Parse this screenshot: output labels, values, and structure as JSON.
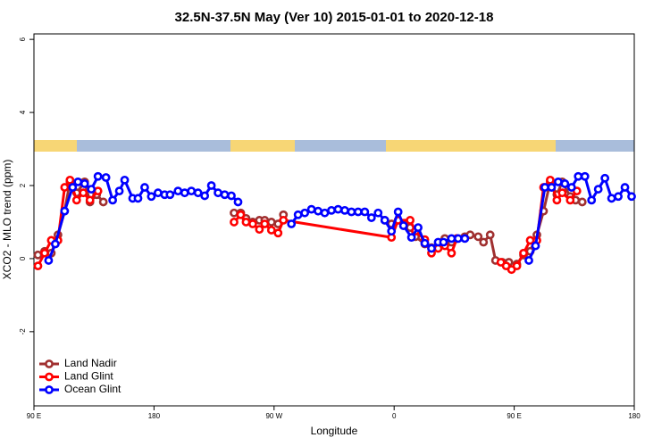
{
  "chart_data": {
    "type": "line",
    "title": "32.5N-37.5N May (Ver 10)   2015-01-01 to 2020-12-18",
    "x_label": "Longitude",
    "y_label": "XCO2 - MLO trend (ppm)",
    "xlim": [
      90,
      540
    ],
    "ylim": [
      -4.03,
      6.15
    ],
    "xticks": [
      {
        "value": 90,
        "label": "90 E"
      },
      {
        "value": 180,
        "label": "180"
      },
      {
        "value": 270,
        "label": "90 W"
      },
      {
        "value": 360,
        "label": "0"
      },
      {
        "value": 450,
        "label": "90 E"
      },
      {
        "value": 540,
        "label": "180"
      }
    ],
    "yticks": [
      -2,
      0,
      2,
      4,
      6
    ],
    "legend": "lower left",
    "series": [
      {
        "name": "Land Nadir",
        "color": "#a03030",
        "x": [
          93,
          98,
          103,
          108,
          113,
          117,
          122,
          128,
          132,
          137,
          142,
          null,
          240,
          245,
          249,
          254,
          259,
          263,
          268,
          273,
          277,
          null,
          353,
          358,
          363,
          367,
          372,
          376,
          383,
          388,
          393,
          398,
          403,
          407,
          413,
          417,
          423,
          427,
          432,
          436,
          441,
          446,
          452,
          457,
          462,
          467,
          472,
          477,
          482,
          486,
          492,
          496,
          501
        ],
        "values": [
          0.1,
          0.2,
          0.15,
          0.65,
          1.3,
          2.1,
          1.8,
          2.1,
          1.55,
          1.75,
          1.55,
          null,
          1.25,
          1.25,
          1.1,
          1.0,
          1.05,
          1.05,
          1.0,
          0.95,
          1.2,
          null,
          1.05,
          0.95,
          1.05,
          0.95,
          0.85,
          0.6,
          0.4,
          0.3,
          0.3,
          0.55,
          0.45,
          0.55,
          0.6,
          0.65,
          0.6,
          0.45,
          0.65,
          -0.05,
          -0.1,
          -0.1,
          -0.15,
          0.1,
          0.2,
          0.65,
          1.3,
          2.1,
          1.75,
          2.1,
          1.7,
          1.6,
          1.55
        ]
      },
      {
        "name": "Land Glint",
        "color": "#ff0000",
        "x": [
          93,
          98,
          103,
          108,
          113,
          117,
          122,
          127,
          132,
          138,
          null,
          240,
          245,
          249,
          254,
          259,
          263,
          268,
          273,
          277,
          358,
          363,
          372,
          376,
          383,
          388,
          393,
          398,
          403,
          407,
          null,
          440,
          444,
          448,
          452,
          457,
          462,
          467,
          472,
          477,
          482,
          486,
          492,
          497
        ],
        "values": [
          -0.2,
          0.15,
          0.5,
          0.5,
          1.95,
          2.15,
          1.6,
          1.8,
          1.6,
          1.85,
          null,
          1.0,
          1.2,
          1.0,
          0.95,
          0.8,
          0.95,
          0.78,
          0.7,
          1.05,
          0.58,
          1.05,
          1.05,
          0.75,
          0.52,
          0.15,
          0.28,
          0.35,
          0.15,
          0.55,
          null,
          -0.1,
          -0.2,
          -0.3,
          -0.2,
          0.15,
          0.5,
          0.5,
          1.95,
          2.15,
          1.6,
          1.8,
          1.6,
          1.85
        ]
      },
      {
        "name": "Ocean Glint",
        "color": "#0000ff",
        "x": [
          101,
          106,
          113,
          119,
          123,
          128,
          133,
          138,
          144,
          149,
          154,
          158,
          164,
          168,
          173,
          178,
          183,
          188,
          192,
          198,
          203,
          208,
          213,
          218,
          223,
          228,
          233,
          238,
          243,
          null,
          283,
          288,
          293,
          298,
          303,
          308,
          313,
          318,
          323,
          328,
          333,
          338,
          343,
          348,
          353,
          358,
          363,
          367,
          373,
          378,
          383,
          388,
          393,
          397,
          403,
          408,
          413,
          null,
          461,
          466,
          473,
          478,
          483,
          488,
          493,
          498,
          503,
          508,
          513,
          518,
          523,
          528,
          533,
          538
        ],
        "values": [
          -0.05,
          0.4,
          1.3,
          1.95,
          2.1,
          2.05,
          1.9,
          2.25,
          2.22,
          1.6,
          1.85,
          2.15,
          1.65,
          1.65,
          1.95,
          1.7,
          1.8,
          1.75,
          1.75,
          1.85,
          1.8,
          1.85,
          1.8,
          1.72,
          2.0,
          1.8,
          1.75,
          1.72,
          1.55,
          null,
          0.95,
          1.2,
          1.25,
          1.35,
          1.3,
          1.25,
          1.32,
          1.35,
          1.32,
          1.28,
          1.28,
          1.28,
          1.12,
          1.25,
          1.05,
          0.75,
          1.28,
          0.9,
          0.58,
          0.85,
          0.42,
          0.28,
          0.45,
          0.45,
          0.55,
          0.55,
          0.55,
          null,
          -0.05,
          0.35,
          1.95,
          1.95,
          2.1,
          2.05,
          1.95,
          2.25,
          2.25,
          1.6,
          1.9,
          2.2,
          1.65,
          1.7,
          1.95,
          1.7
        ]
      }
    ]
  }
}
